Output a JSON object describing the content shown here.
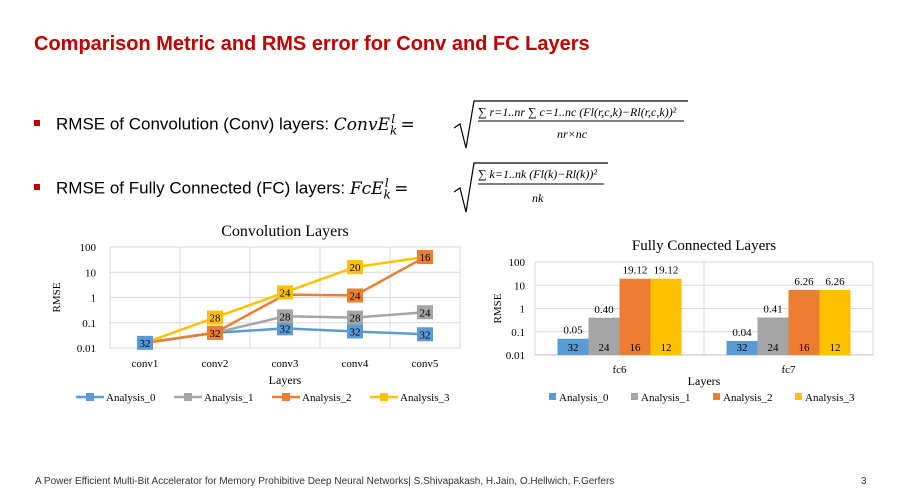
{
  "title": "Comparison Metric and RMS error for Conv and FC Layers",
  "bullets": [
    {
      "text": "RMSE of Convolution (Conv) layers: ",
      "lhs": "ConvE",
      "numerator": "∑ r=1..nr ∑ c=1..nc (Fl(r,c,k)−Rl(r,c,k))²",
      "denominator": "nr×nc"
    },
    {
      "text": "RMSE of Fully Connected (FC) layers: ",
      "lhs": "FcE",
      "numerator": "∑ k=1..nk (Fl(k)−Rl(k))²",
      "denominator": "nk"
    }
  ],
  "footer": "A Power Efficient Multi-Bit Accelerator for Memory Prohibitive Deep Neural Networks| S.Shivapakash, H.Jain, O.Hellwich, F.Gerfers",
  "page_number": "3",
  "colors": {
    "title": "#c00000",
    "analysis_0": "#5b9bd5",
    "analysis_1": "#a5a5a5",
    "analysis_2": "#ed7d31",
    "analysis_3": "#ffc000"
  },
  "chart_data": [
    {
      "type": "line",
      "title": "Convolution Layers",
      "xlabel": "Layers",
      "ylabel": "RMSE",
      "yscale": "log",
      "ylim": [
        0.01,
        100
      ],
      "yticks": [
        "0.01",
        "0.1",
        "1",
        "10",
        "100"
      ],
      "categories": [
        "conv1",
        "conv2",
        "conv3",
        "conv4",
        "conv5"
      ],
      "legend_position": "bottom",
      "series": [
        {
          "name": "Analysis_0",
          "values": [
            0.016,
            0.04,
            0.06,
            0.045,
            0.035
          ],
          "labels": [
            "32",
            "32",
            "32",
            "32",
            "32"
          ]
        },
        {
          "name": "Analysis_1",
          "values": [
            0.016,
            0.04,
            0.18,
            0.16,
            0.26
          ],
          "labels": [
            "",
            "",
            "28",
            "28",
            "24"
          ]
        },
        {
          "name": "Analysis_2",
          "values": [
            0.016,
            0.04,
            1.3,
            1.2,
            40
          ],
          "labels": [
            "",
            "32",
            "",
            "24",
            "16"
          ]
        },
        {
          "name": "Analysis_3",
          "values": [
            0.016,
            0.16,
            1.6,
            16,
            40
          ],
          "labels": [
            "",
            "28",
            "24",
            "20",
            ""
          ]
        }
      ]
    },
    {
      "type": "bar",
      "title": "Fully Connected Layers",
      "xlabel": "Layers",
      "ylabel": "RMSE",
      "yscale": "log",
      "ylim": [
        0.01,
        100
      ],
      "yticks": [
        "0.01",
        "0.1",
        "1",
        "10",
        "100"
      ],
      "categories": [
        "fc6",
        "fc7"
      ],
      "legend_position": "bottom",
      "series": [
        {
          "name": "Analysis_0",
          "values": [
            0.05,
            0.04
          ],
          "top_labels": [
            "0.05",
            "0.04"
          ],
          "inner_labels": [
            "32",
            "32"
          ]
        },
        {
          "name": "Analysis_1",
          "values": [
            0.4,
            0.41
          ],
          "top_labels": [
            "0.40",
            "0.41"
          ],
          "inner_labels": [
            "24",
            "24"
          ]
        },
        {
          "name": "Analysis_2",
          "values": [
            19.12,
            6.26
          ],
          "top_labels": [
            "19.12",
            "6.26"
          ],
          "inner_labels": [
            "16",
            "16"
          ]
        },
        {
          "name": "Analysis_3",
          "values": [
            19.12,
            6.26
          ],
          "top_labels": [
            "19.12",
            "6.26"
          ],
          "inner_labels": [
            "12",
            "12"
          ]
        }
      ]
    }
  ]
}
